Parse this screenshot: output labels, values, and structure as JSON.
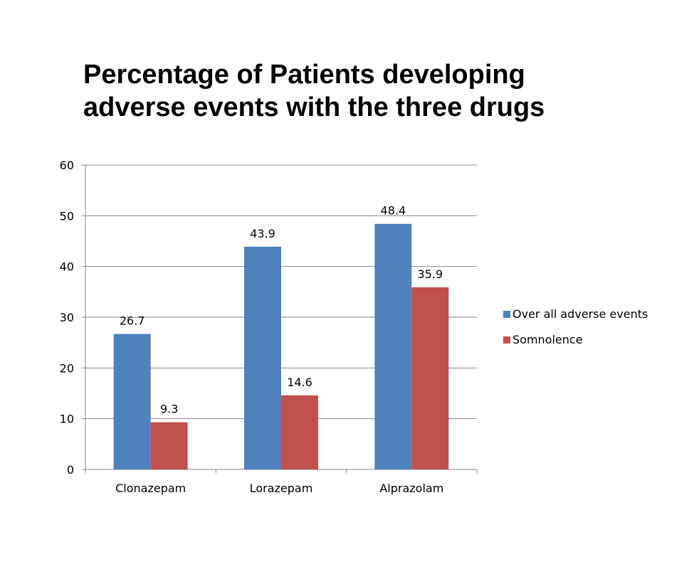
{
  "chart_data": {
    "type": "bar",
    "title_lines": [
      "Percentage of Patients developing",
      "adverse events with the three drugs"
    ],
    "categories": [
      "Clonazepam",
      "Lorazepam",
      "Alprazolam"
    ],
    "series": [
      {
        "name": "Over all adverse events",
        "values": [
          26.7,
          43.9,
          48.4
        ],
        "color": "#4F81BD"
      },
      {
        "name": "Somnolence",
        "values": [
          9.3,
          14.6,
          35.9
        ],
        "color": "#C0504D"
      }
    ],
    "ylim": [
      0,
      60
    ],
    "yticks": [
      0,
      10,
      20,
      30,
      40,
      50,
      60
    ],
    "grid": true,
    "legend_position": "right"
  }
}
